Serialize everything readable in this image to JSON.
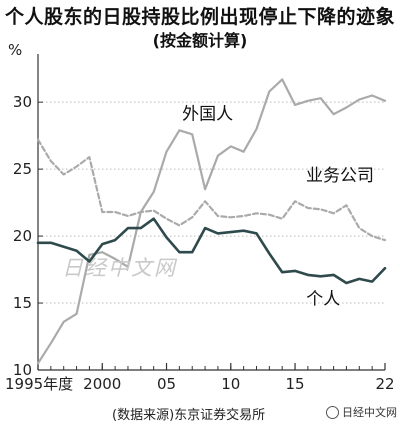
{
  "header": {
    "title": "个人股东的日股持股比例出现停止下降的迹象",
    "subtitle": "(按金额计算)"
  },
  "footer": {
    "source": "(数据来源)东京证券交易所",
    "watermark": "日经中文网"
  },
  "watermark_mid": "日经中文网",
  "colors": {
    "foreign": "#aaaaaa",
    "corporate": "#aaaaaa",
    "individual": "#2e4a4c",
    "axis": "#333333",
    "grid": "#bbbbbb"
  },
  "chart_data": {
    "type": "line",
    "ylabel": "%",
    "xlabel": "",
    "ylim": [
      10,
      33
    ],
    "xlim": [
      1995,
      2022
    ],
    "y_ticks": [
      10,
      15,
      20,
      25,
      30
    ],
    "x_ticks": [
      {
        "value": 1995,
        "label": "1995年度"
      },
      {
        "value": 2000,
        "label": "2000"
      },
      {
        "value": 2005,
        "label": "05"
      },
      {
        "value": 2010,
        "label": "10"
      },
      {
        "value": 2015,
        "label": "15"
      },
      {
        "value": 2022,
        "label": "22"
      }
    ],
    "grid": "horizontal dotted",
    "x": [
      1995,
      1996,
      1997,
      1998,
      1999,
      2000,
      2001,
      2002,
      2003,
      2004,
      2005,
      2006,
      2007,
      2008,
      2009,
      2010,
      2011,
      2012,
      2013,
      2014,
      2015,
      2016,
      2017,
      2018,
      2019,
      2020,
      2021,
      2022
    ],
    "series": [
      {
        "name": "外国人",
        "style": "solid",
        "values": [
          10.5,
          12.0,
          13.6,
          14.2,
          18.6,
          18.8,
          18.3,
          17.7,
          21.8,
          23.3,
          26.3,
          27.9,
          27.6,
          23.5,
          26.0,
          26.7,
          26.3,
          28.0,
          30.8,
          31.7,
          29.8,
          30.1,
          30.3,
          29.1,
          29.6,
          30.2,
          30.5,
          30.1
        ]
      },
      {
        "name": "业务公司",
        "style": "dashed",
        "values": [
          27.2,
          25.6,
          24.6,
          25.2,
          25.9,
          21.8,
          21.8,
          21.5,
          21.8,
          21.9,
          21.3,
          20.8,
          21.4,
          22.6,
          21.5,
          21.4,
          21.5,
          21.7,
          21.6,
          21.3,
          22.6,
          22.1,
          22.0,
          21.7,
          22.3,
          20.6,
          20.0,
          19.7
        ]
      },
      {
        "name": "个人",
        "style": "solid",
        "values": [
          19.5,
          19.5,
          19.2,
          18.9,
          18.1,
          19.4,
          19.7,
          20.6,
          20.6,
          21.3,
          19.9,
          18.8,
          18.8,
          20.6,
          20.2,
          20.3,
          20.4,
          20.2,
          18.7,
          17.3,
          17.4,
          17.1,
          17.0,
          17.1,
          16.5,
          16.8,
          16.6,
          17.6
        ]
      }
    ],
    "series_labels": [
      "外国人",
      "业务公司",
      "个人"
    ]
  }
}
